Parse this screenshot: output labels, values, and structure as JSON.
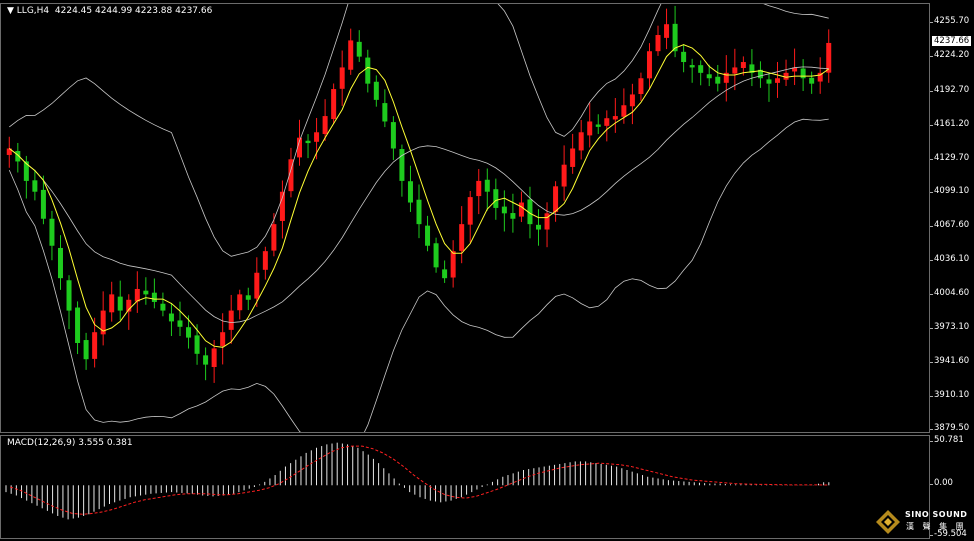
{
  "header": {
    "symbol_label": "LLG,H4",
    "ohlc": "4224.45 4244.99 4223.88 4237.66"
  },
  "macd_header": "MACD(12,26,9) 3.555 0.381",
  "current_price": "4237.66",
  "price_ticks": [
    "4255.70",
    "4224.20",
    "4192.70",
    "4161.20",
    "4129.70",
    "4099.10",
    "4067.60",
    "4036.10",
    "4004.60",
    "3973.10",
    "3941.60",
    "3910.10",
    "3879.50"
  ],
  "macd_ticks": [
    "50.781",
    "0.00",
    "-59.504"
  ],
  "logo": {
    "name": "SINO SOUND",
    "sub": "漢 聲 集 團"
  },
  "colors": {
    "bull": "#ff1a1a",
    "bear": "#1ecb1e",
    "ma": "#ffff33",
    "bands": "#c8c8c8",
    "signal": "#ff2020",
    "hist": "#e8e8e8"
  },
  "chart_data": [
    {
      "type": "candlestick",
      "ylim": [
        3879.5,
        4270
      ],
      "indicators": [
        "Bollinger Bands",
        "Moving Average"
      ],
      "close": [
        4140,
        4128,
        4110,
        4100,
        4075,
        4050,
        4020,
        3990,
        3960,
        3945,
        3970,
        3990,
        4005,
        3990,
        4000,
        4010,
        4005,
        3998,
        3990,
        3980,
        3975,
        3965,
        3950,
        3940,
        3955,
        3970,
        3990,
        4005,
        4000,
        4025,
        4045,
        4070,
        4100,
        4130,
        4150,
        4145,
        4155,
        4170,
        4195,
        4215,
        4240,
        4225,
        4200,
        4185,
        4165,
        4140,
        4110,
        4090,
        4070,
        4050,
        4030,
        4020,
        4045,
        4070,
        4095,
        4110,
        4100,
        4085,
        4080,
        4075,
        4090,
        4070,
        4065,
        4080,
        4105,
        4125,
        4140,
        4155,
        4165,
        4160,
        4168,
        4170,
        4180,
        4190,
        4205,
        4230,
        4245,
        4255,
        4230,
        4220,
        4215,
        4210,
        4205,
        4200,
        4210,
        4215,
        4220,
        4210,
        4205,
        4200,
        4205,
        4210,
        4215,
        4205,
        4200,
        4210,
        4237.66
      ]
    },
    {
      "type": "bar+line",
      "name": "MACD(12,26,9)",
      "ylim": [
        -59.504,
        50.781
      ],
      "macd": [
        -8,
        -12,
        -18,
        -24,
        -30,
        -36,
        -40,
        -38,
        -34,
        -28,
        -22,
        -18,
        -14,
        -12,
        -10,
        -9,
        -8,
        -9,
        -10,
        -12,
        -13,
        -12,
        -10,
        -6,
        -2,
        4,
        12,
        22,
        30,
        38,
        44,
        48,
        50,
        48,
        44,
        36,
        26,
        14,
        2,
        -8,
        -14,
        -18,
        -20,
        -18,
        -14,
        -8,
        -2,
        4,
        10,
        14,
        18,
        20,
        22,
        24,
        26,
        28,
        28,
        26,
        24,
        22,
        18,
        14,
        10,
        8,
        6,
        5,
        4,
        3,
        2,
        2,
        1,
        1,
        1,
        0.5,
        0.5,
        0.3,
        0.2,
        0.2,
        0.2,
        3.555
      ],
      "signal": [
        -2,
        -6,
        -12,
        -18,
        -24,
        -29,
        -33,
        -34,
        -33,
        -31,
        -28,
        -24,
        -20,
        -17,
        -15,
        -13,
        -11,
        -10,
        -10,
        -10,
        -11,
        -11,
        -10,
        -8,
        -6,
        -3,
        2,
        9,
        17,
        25,
        32,
        39,
        44,
        46,
        46,
        43,
        38,
        31,
        22,
        12,
        3,
        -5,
        -11,
        -14,
        -15,
        -13,
        -9,
        -5,
        0,
        5,
        10,
        14,
        17,
        20,
        22,
        24,
        25,
        26,
        25,
        24,
        22,
        19,
        16,
        13,
        10,
        8,
        6,
        5,
        4,
        3,
        2,
        1.5,
        1.2,
        1,
        0.8,
        0.6,
        0.5,
        0.4,
        0.4,
        0.381
      ]
    }
  ]
}
